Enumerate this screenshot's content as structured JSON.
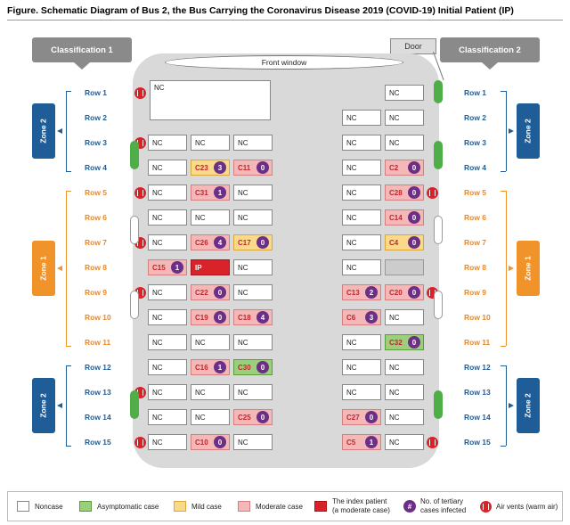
{
  "title": "Figure. Schematic Diagram of Bus 2, the Bus Carrying the Coronavirus Disease 2019 (COVID-19) Initial Patient (IP)",
  "classification_left": "Classification 1",
  "classification_right": "Classification 2",
  "door": "Door",
  "front_window": "Front window",
  "rows": [
    "Row 1",
    "Row 2",
    "Row 3",
    "Row 4",
    "Row 5",
    "Row 6",
    "Row 7",
    "Row 8",
    "Row 9",
    "Row 10",
    "Row 11",
    "Row 12",
    "Row 13",
    "Row 14",
    "Row 15"
  ],
  "zones_left": [
    {
      "label": "Zone 2",
      "color": "blue"
    },
    {
      "label": "Zone 1",
      "color": "orange"
    },
    {
      "label": "Zone 2",
      "color": "blue"
    }
  ],
  "zones_right": [
    {
      "label": "Zone 2",
      "color": "blue"
    },
    {
      "label": "Zone 1",
      "color": "orange"
    },
    {
      "label": "Zone 2",
      "color": "blue"
    }
  ],
  "row1_left": "NC",
  "seats": [
    {
      "row": 1,
      "col": 4,
      "label": "NC",
      "type": "noncase"
    },
    {
      "row": 2,
      "col": 3,
      "label": "NC",
      "type": "noncase"
    },
    {
      "row": 2,
      "col": 4,
      "label": "NC",
      "type": "noncase"
    },
    {
      "row": 3,
      "col": 0,
      "label": "NC",
      "type": "noncase"
    },
    {
      "row": 3,
      "col": 1,
      "label": "NC",
      "type": "noncase"
    },
    {
      "row": 3,
      "col": 2,
      "label": "NC",
      "type": "noncase"
    },
    {
      "row": 3,
      "col": 3,
      "label": "NC",
      "type": "noncase"
    },
    {
      "row": 3,
      "col": 4,
      "label": "NC",
      "type": "noncase"
    },
    {
      "row": 4,
      "col": 0,
      "label": "NC",
      "type": "noncase"
    },
    {
      "row": 4,
      "col": 1,
      "label": "C23",
      "type": "mild",
      "n": "3"
    },
    {
      "row": 4,
      "col": 2,
      "label": "C11",
      "type": "moderate",
      "n": "0"
    },
    {
      "row": 4,
      "col": 3,
      "label": "NC",
      "type": "noncase"
    },
    {
      "row": 4,
      "col": 4,
      "label": "C2",
      "type": "moderate",
      "n": "0"
    },
    {
      "row": 5,
      "col": 0,
      "label": "NC",
      "type": "noncase"
    },
    {
      "row": 5,
      "col": 1,
      "label": "C31",
      "type": "moderate",
      "n": "1"
    },
    {
      "row": 5,
      "col": 2,
      "label": "NC",
      "type": "noncase"
    },
    {
      "row": 5,
      "col": 3,
      "label": "NC",
      "type": "noncase"
    },
    {
      "row": 5,
      "col": 4,
      "label": "C28",
      "type": "moderate",
      "n": "0"
    },
    {
      "row": 6,
      "col": 0,
      "label": "NC",
      "type": "noncase"
    },
    {
      "row": 6,
      "col": 1,
      "label": "NC",
      "type": "noncase"
    },
    {
      "row": 6,
      "col": 2,
      "label": "NC",
      "type": "noncase"
    },
    {
      "row": 6,
      "col": 3,
      "label": "NC",
      "type": "noncase"
    },
    {
      "row": 6,
      "col": 4,
      "label": "C14",
      "type": "moderate",
      "n": "0"
    },
    {
      "row": 7,
      "col": 0,
      "label": "NC",
      "type": "noncase"
    },
    {
      "row": 7,
      "col": 1,
      "label": "C26",
      "type": "moderate",
      "n": "4"
    },
    {
      "row": 7,
      "col": 2,
      "label": "C17",
      "type": "mild",
      "n": "0"
    },
    {
      "row": 7,
      "col": 3,
      "label": "NC",
      "type": "noncase"
    },
    {
      "row": 7,
      "col": 4,
      "label": "C4",
      "type": "mild",
      "n": "0"
    },
    {
      "row": 8,
      "col": 0,
      "label": "C15",
      "type": "moderate",
      "n": "1"
    },
    {
      "row": 8,
      "col": 1,
      "label": "IP",
      "type": "index"
    },
    {
      "row": 8,
      "col": 2,
      "label": "NC",
      "type": "noncase"
    },
    {
      "row": 8,
      "col": 3,
      "label": "NC",
      "type": "noncase"
    },
    {
      "row": 8,
      "col": 4,
      "label": "",
      "type": "empty"
    },
    {
      "row": 9,
      "col": 0,
      "label": "NC",
      "type": "noncase"
    },
    {
      "row": 9,
      "col": 1,
      "label": "C22",
      "type": "moderate",
      "n": "0"
    },
    {
      "row": 9,
      "col": 2,
      "label": "NC",
      "type": "noncase"
    },
    {
      "row": 9,
      "col": 3,
      "label": "C13",
      "type": "moderate",
      "n": "2"
    },
    {
      "row": 9,
      "col": 4,
      "label": "C20",
      "type": "moderate",
      "n": "0"
    },
    {
      "row": 10,
      "col": 0,
      "label": "NC",
      "type": "noncase"
    },
    {
      "row": 10,
      "col": 1,
      "label": "C19",
      "type": "moderate",
      "n": "0"
    },
    {
      "row": 10,
      "col": 2,
      "label": "C18",
      "type": "moderate",
      "n": "4"
    },
    {
      "row": 10,
      "col": 3,
      "label": "C6",
      "type": "moderate",
      "n": "3"
    },
    {
      "row": 10,
      "col": 4,
      "label": "NC",
      "type": "noncase"
    },
    {
      "row": 11,
      "col": 0,
      "label": "NC",
      "type": "noncase"
    },
    {
      "row": 11,
      "col": 1,
      "label": "NC",
      "type": "noncase"
    },
    {
      "row": 11,
      "col": 2,
      "label": "NC",
      "type": "noncase"
    },
    {
      "row": 11,
      "col": 3,
      "label": "NC",
      "type": "noncase"
    },
    {
      "row": 11,
      "col": 4,
      "label": "C32",
      "type": "asym",
      "n": "0"
    },
    {
      "row": 12,
      "col": 0,
      "label": "NC",
      "type": "noncase"
    },
    {
      "row": 12,
      "col": 1,
      "label": "C16",
      "type": "moderate",
      "n": "1"
    },
    {
      "row": 12,
      "col": 2,
      "label": "C30",
      "type": "asym",
      "n": "0"
    },
    {
      "row": 12,
      "col": 3,
      "label": "NC",
      "type": "noncase"
    },
    {
      "row": 12,
      "col": 4,
      "label": "NC",
      "type": "noncase"
    },
    {
      "row": 13,
      "col": 0,
      "label": "NC",
      "type": "noncase"
    },
    {
      "row": 13,
      "col": 1,
      "label": "NC",
      "type": "noncase"
    },
    {
      "row": 13,
      "col": 2,
      "label": "NC",
      "type": "noncase"
    },
    {
      "row": 13,
      "col": 3,
      "label": "NC",
      "type": "noncase"
    },
    {
      "row": 13,
      "col": 4,
      "label": "NC",
      "type": "noncase"
    },
    {
      "row": 14,
      "col": 0,
      "label": "NC",
      "type": "noncase"
    },
    {
      "row": 14,
      "col": 1,
      "label": "NC",
      "type": "noncase"
    },
    {
      "row": 14,
      "col": 2,
      "label": "C25",
      "type": "moderate",
      "n": "0"
    },
    {
      "row": 14,
      "col": 3,
      "label": "C27",
      "type": "moderate",
      "n": "0"
    },
    {
      "row": 14,
      "col": 4,
      "label": "NC",
      "type": "noncase"
    },
    {
      "row": 15,
      "col": 0,
      "label": "NC",
      "type": "noncase"
    },
    {
      "row": 15,
      "col": 1,
      "label": "C10",
      "type": "moderate",
      "n": "0"
    },
    {
      "row": 15,
      "col": 2,
      "label": "NC",
      "type": "noncase"
    },
    {
      "row": 15,
      "col": 3,
      "label": "C5",
      "type": "moderate",
      "n": "1"
    },
    {
      "row": 15,
      "col": 4,
      "label": "NC",
      "type": "noncase"
    }
  ],
  "vents_left_rows": [
    1,
    3,
    5,
    7,
    9,
    13,
    15
  ],
  "vents_right_rows": [
    5,
    9,
    15
  ],
  "windows": {
    "left_green_rows": [
      [
        3,
        4
      ],
      [
        13,
        14
      ]
    ],
    "left_white_rows": [
      [
        6,
        7
      ],
      [
        9,
        10
      ]
    ],
    "right_green_rows": [
      [
        3,
        4
      ],
      [
        13,
        14
      ]
    ],
    "right_white_rows": [
      [
        6,
        7
      ],
      [
        9,
        10
      ]
    ],
    "right_green_row1": true
  },
  "legend": {
    "noncase": "Noncase",
    "asym": "Asymptomatic case",
    "mild": "Mild case",
    "moderate": "Moderate case",
    "index_line1": "The index patient",
    "index_line2": "(a moderate case)",
    "badge_symbol": "#",
    "badge_line1": "No. of tertiary",
    "badge_line2": "cases infected",
    "vents": "Air vents (warm air)"
  },
  "colors": {
    "noncase": "#ffffff",
    "asym": "#9ccf7c",
    "mild": "#fbd98a",
    "moderate": "#f4b8b8",
    "index": "#d8232a",
    "badge": "#6b2f86",
    "zone2": "#1f5d99",
    "zone1": "#f0932b"
  }
}
